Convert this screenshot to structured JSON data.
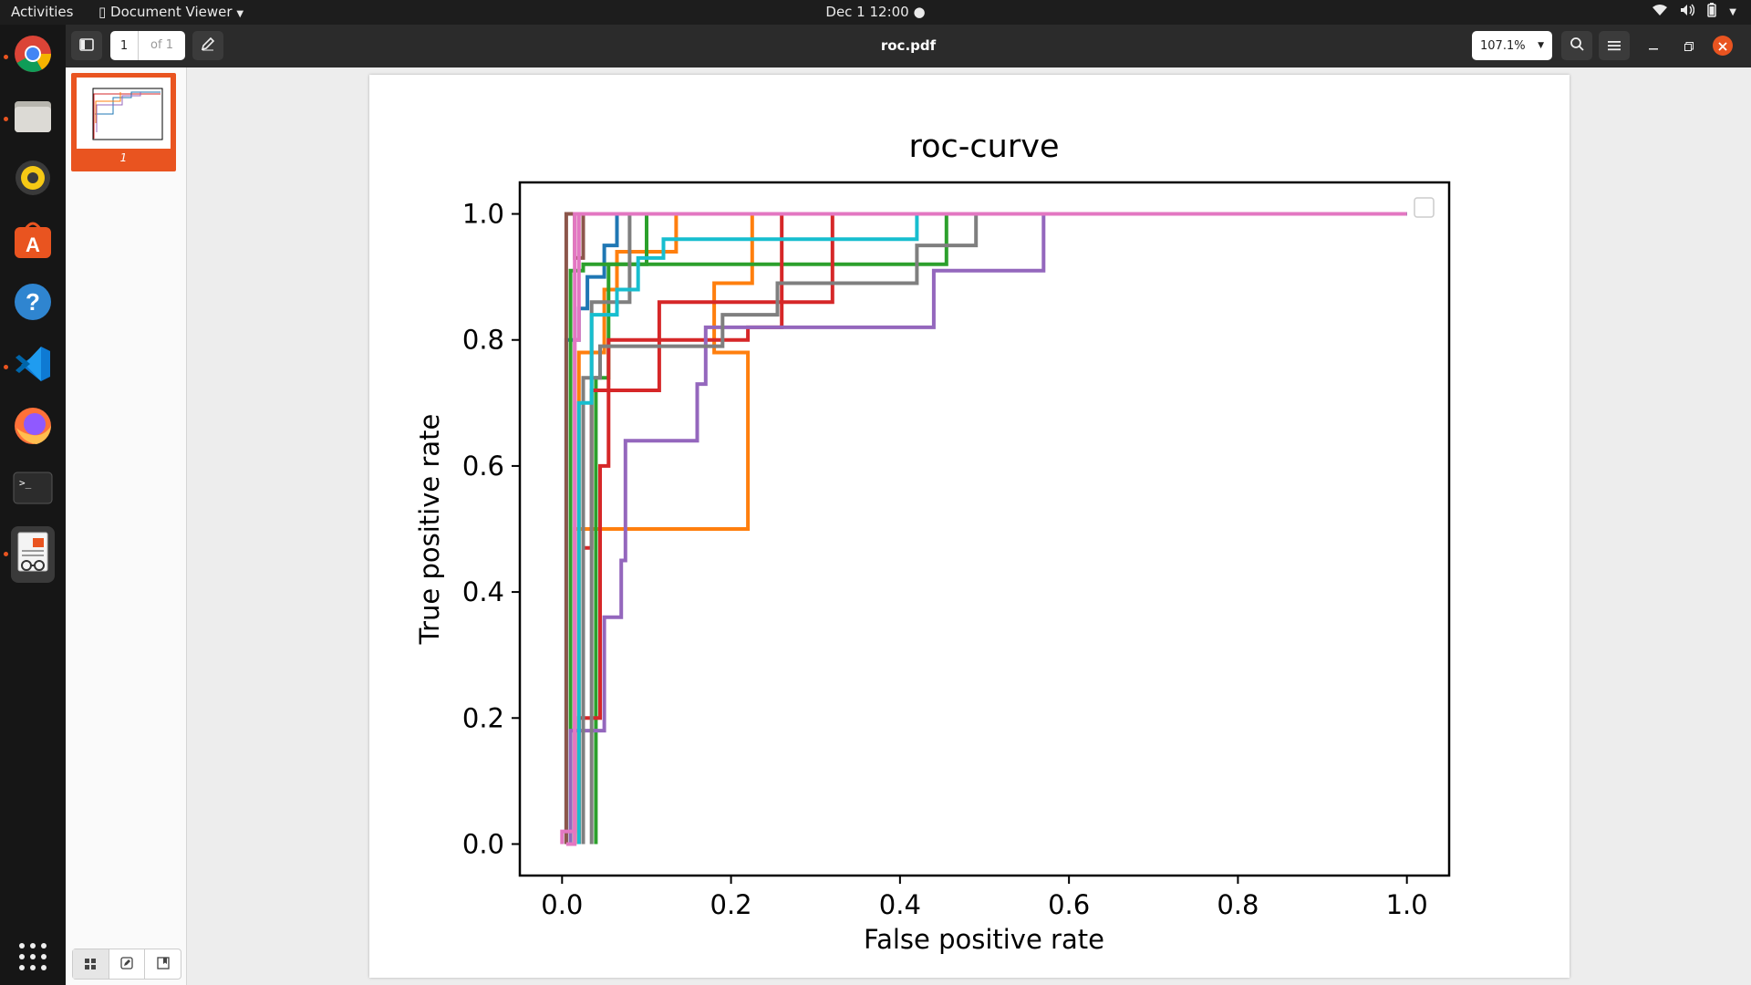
{
  "topbar": {
    "activities": "Activities",
    "app_menu": "Document Viewer",
    "datetime": "Dec 1  12:00"
  },
  "dock": {
    "apps": [
      {
        "name": "chrome",
        "icon": "chrome-icon",
        "running": true
      },
      {
        "name": "files",
        "icon": "files-icon",
        "running": true
      },
      {
        "name": "rhythmbox",
        "icon": "rhythmbox-icon",
        "running": false
      },
      {
        "name": "software",
        "icon": "software-icon",
        "running": false
      },
      {
        "name": "help",
        "icon": "help-icon",
        "running": false
      },
      {
        "name": "vscode",
        "icon": "vscode-icon",
        "running": true
      },
      {
        "name": "firefox",
        "icon": "firefox-icon",
        "running": false
      },
      {
        "name": "terminal",
        "icon": "terminal-icon",
        "running": false
      },
      {
        "name": "document-viewer",
        "icon": "document-viewer-icon",
        "running": true
      }
    ],
    "show_apps_icon": "grid-icon"
  },
  "headerbar": {
    "page_number": "1",
    "page_total": "of 1",
    "title": "roc.pdf",
    "zoom": "107.1%"
  },
  "sidebar": {
    "thumbnail_label": "1"
  },
  "colors": {
    "accent": "#e95420",
    "headerbar": "#2b2b2b",
    "topbar": "#1d1d1d"
  },
  "chart_data": {
    "type": "line",
    "title": "roc-curve",
    "xlabel": "False positive rate",
    "ylabel": "True positive rate",
    "xlim": [
      -0.05,
      1.05
    ],
    "ylim": [
      -0.05,
      1.05
    ],
    "xticks": [
      "0.0",
      "0.2",
      "0.4",
      "0.6",
      "0.8",
      "1.0"
    ],
    "yticks": [
      "0.0",
      "0.2",
      "0.4",
      "0.6",
      "0.8",
      "1.0"
    ],
    "grid": false,
    "legend": "top-right (empty)",
    "series": [
      {
        "color": "#1f77b4",
        "points": [
          [
            0.005,
            0
          ],
          [
            0.005,
            0.8
          ],
          [
            0.02,
            0.8
          ],
          [
            0.02,
            0.85
          ],
          [
            0.03,
            0.85
          ],
          [
            0.03,
            0.9
          ],
          [
            0.05,
            0.9
          ],
          [
            0.05,
            0.95
          ],
          [
            0.065,
            0.95
          ],
          [
            0.065,
            1
          ],
          [
            1,
            1
          ]
        ]
      },
      {
        "color": "#ff7f0e",
        "points": [
          [
            0.015,
            0
          ],
          [
            0.015,
            0.5
          ],
          [
            0.22,
            0.5
          ],
          [
            0.22,
            0.78
          ],
          [
            0.18,
            0.78
          ],
          [
            0.18,
            0.89
          ],
          [
            0.225,
            0.89
          ],
          [
            0.225,
            0.98
          ],
          [
            0.225,
            1
          ],
          [
            1,
            1
          ]
        ]
      },
      {
        "color": "#ff7f0e",
        "points": [
          [
            0.02,
            0
          ],
          [
            0.02,
            0.78
          ],
          [
            0.05,
            0.78
          ],
          [
            0.05,
            0.88
          ],
          [
            0.065,
            0.88
          ],
          [
            0.065,
            0.94
          ],
          [
            0.135,
            0.94
          ],
          [
            0.135,
            1
          ],
          [
            1,
            1
          ]
        ]
      },
      {
        "color": "#2ca02c",
        "points": [
          [
            0.01,
            0
          ],
          [
            0.01,
            0.91
          ],
          [
            0.025,
            0.91
          ],
          [
            0.025,
            0.92
          ],
          [
            0.455,
            0.92
          ],
          [
            0.455,
            1
          ],
          [
            1,
            1
          ]
        ]
      },
      {
        "color": "#2ca02c",
        "points": [
          [
            0.04,
            0
          ],
          [
            0.04,
            0.74
          ],
          [
            0.055,
            0.74
          ],
          [
            0.055,
            0.92
          ],
          [
            0.1,
            0.92
          ],
          [
            0.1,
            0.92
          ],
          [
            0.1,
            1
          ],
          [
            1,
            1
          ]
        ]
      },
      {
        "color": "#d62728",
        "points": [
          [
            0.02,
            0
          ],
          [
            0.02,
            0.2
          ],
          [
            0.045,
            0.2
          ],
          [
            0.045,
            0.6
          ],
          [
            0.055,
            0.6
          ],
          [
            0.055,
            0.8
          ],
          [
            0.22,
            0.8
          ],
          [
            0.22,
            0.82
          ],
          [
            0.26,
            0.82
          ],
          [
            0.26,
            1
          ],
          [
            1,
            1
          ]
        ]
      },
      {
        "color": "#d62728",
        "points": [
          [
            0.025,
            0
          ],
          [
            0.025,
            0.47
          ],
          [
            0.035,
            0.47
          ],
          [
            0.035,
            0.72
          ],
          [
            0.115,
            0.72
          ],
          [
            0.115,
            0.86
          ],
          [
            0.32,
            0.86
          ],
          [
            0.32,
            1
          ],
          [
            1,
            1
          ]
        ]
      },
      {
        "color": "#9467bd",
        "points": [
          [
            0.01,
            0
          ],
          [
            0.01,
            0.18
          ],
          [
            0.05,
            0.18
          ],
          [
            0.05,
            0.36
          ],
          [
            0.07,
            0.36
          ],
          [
            0.07,
            0.45
          ],
          [
            0.075,
            0.45
          ],
          [
            0.075,
            0.64
          ],
          [
            0.16,
            0.64
          ],
          [
            0.16,
            0.73
          ],
          [
            0.17,
            0.73
          ],
          [
            0.17,
            0.82
          ],
          [
            0.44,
            0.82
          ],
          [
            0.44,
            0.91
          ],
          [
            0.57,
            0.91
          ],
          [
            0.57,
            1
          ],
          [
            1,
            1
          ]
        ]
      },
      {
        "color": "#8c564b",
        "points": [
          [
            0.005,
            0
          ],
          [
            0.005,
            1
          ],
          [
            0.015,
            1
          ],
          [
            0.015,
            0.93
          ],
          [
            0.025,
            0.93
          ],
          [
            0.025,
            1
          ],
          [
            1,
            1
          ]
        ]
      },
      {
        "color": "#e377c2",
        "points": [
          [
            0.0,
            0
          ],
          [
            0.0,
            0.02
          ],
          [
            0.015,
            0.02
          ],
          [
            0.015,
            0.8
          ],
          [
            0.02,
            0.8
          ],
          [
            0.02,
            1
          ],
          [
            1,
            1
          ]
        ]
      },
      {
        "color": "#7f7f7f",
        "points": [
          [
            0.025,
            0
          ],
          [
            0.025,
            0.74
          ],
          [
            0.045,
            0.74
          ],
          [
            0.045,
            0.79
          ],
          [
            0.19,
            0.79
          ],
          [
            0.19,
            0.84
          ],
          [
            0.255,
            0.84
          ],
          [
            0.255,
            0.89
          ],
          [
            0.42,
            0.89
          ],
          [
            0.42,
            0.95
          ],
          [
            0.49,
            0.95
          ],
          [
            0.49,
            1
          ],
          [
            1,
            1
          ]
        ]
      },
      {
        "color": "#7f7f7f",
        "points": [
          [
            0.035,
            0
          ],
          [
            0.035,
            0.86
          ],
          [
            0.08,
            0.86
          ],
          [
            0.08,
            1
          ],
          [
            1,
            1
          ]
        ]
      },
      {
        "color": "#17becf",
        "points": [
          [
            0.02,
            0
          ],
          [
            0.02,
            0.7
          ],
          [
            0.035,
            0.7
          ],
          [
            0.035,
            0.84
          ],
          [
            0.065,
            0.84
          ],
          [
            0.065,
            0.88
          ],
          [
            0.09,
            0.88
          ],
          [
            0.09,
            0.93
          ],
          [
            0.12,
            0.93
          ],
          [
            0.12,
            0.96
          ],
          [
            0.42,
            0.96
          ],
          [
            0.42,
            1
          ],
          [
            1,
            1
          ]
        ]
      },
      {
        "color": "#e377c2",
        "points": [
          [
            0.005,
            0
          ],
          [
            0.005,
            0.0
          ],
          [
            0.015,
            0.0
          ],
          [
            0.015,
            1
          ],
          [
            1,
            1
          ]
        ]
      }
    ]
  }
}
